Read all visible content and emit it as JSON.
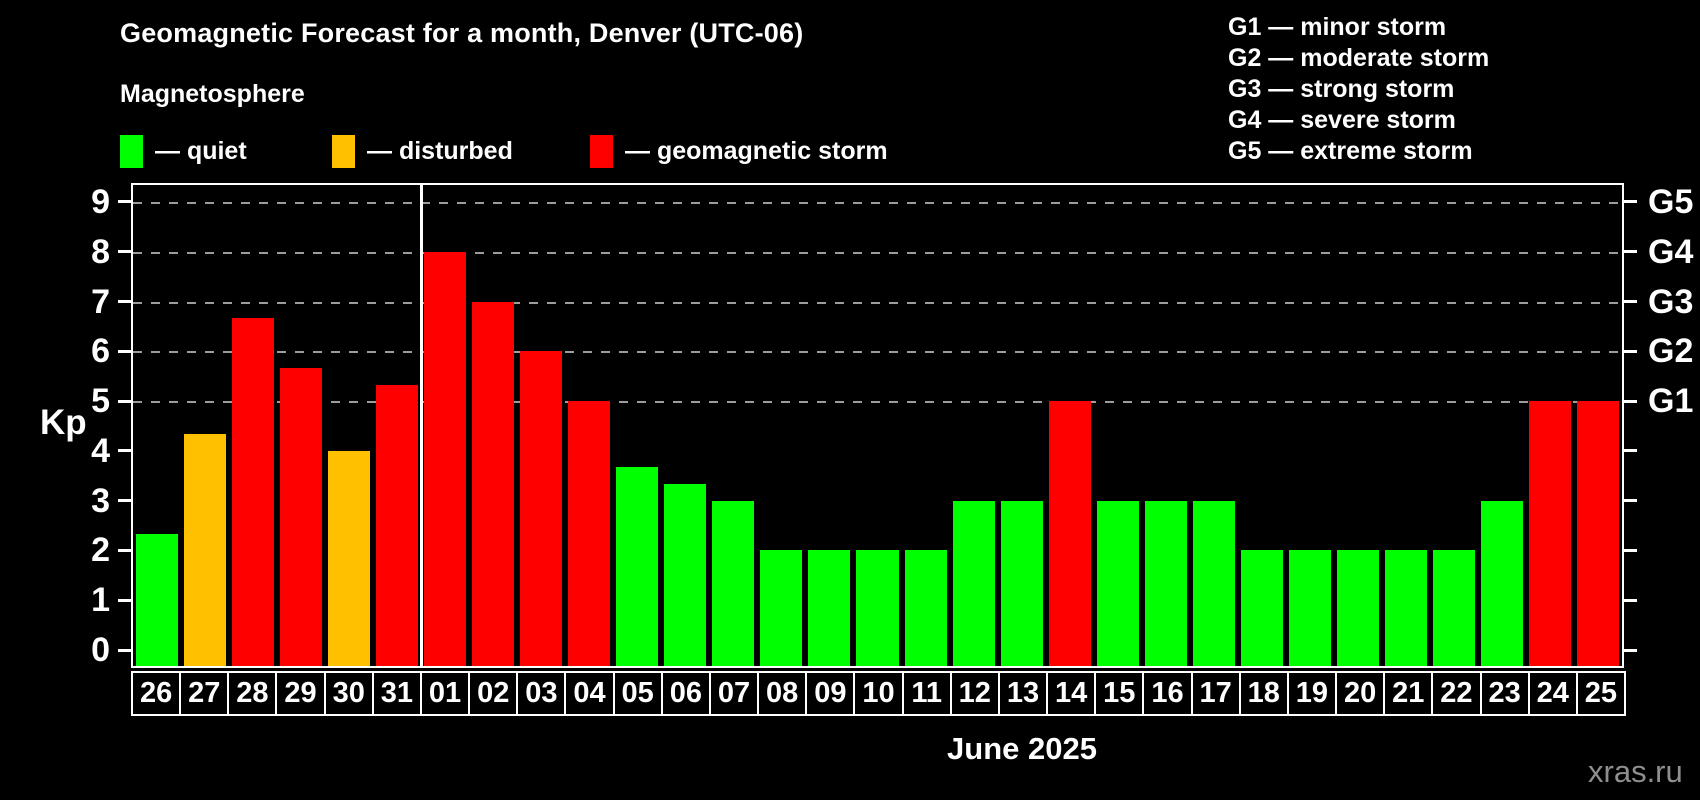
{
  "title": "Geomagnetic Forecast for a month, Denver (UTC-06)",
  "subtitle": "Magnetosphere",
  "legend": {
    "items": [
      {
        "name": "quiet",
        "label": "— quiet",
        "color": "#00ff00"
      },
      {
        "name": "disturbed",
        "label": "— disturbed",
        "color": "#ffc000"
      },
      {
        "name": "storm",
        "label": "— geomagnetic storm",
        "color": "#ff0000"
      }
    ]
  },
  "g_legend": {
    "lines": [
      "G1 — minor storm",
      "G2 — moderate storm",
      "G3 — strong storm",
      "G4 — severe storm",
      "G5 — extreme storm"
    ]
  },
  "y_axis": {
    "label": "Kp",
    "ticks": [
      0,
      1,
      2,
      3,
      4,
      5,
      6,
      7,
      8,
      9
    ]
  },
  "right_axis": {
    "labels": [
      {
        "kp": 5,
        "text": "G1"
      },
      {
        "kp": 6,
        "text": "G2"
      },
      {
        "kp": 7,
        "text": "G3"
      },
      {
        "kp": 8,
        "text": "G4"
      },
      {
        "kp": 9,
        "text": "G5"
      }
    ]
  },
  "month_label": "June 2025",
  "watermark": "xras.ru",
  "colors": {
    "quiet": "#00ff00",
    "disturbed": "#ffc000",
    "storm": "#ff0000",
    "grid": "#9c9c9c",
    "axis": "#ffffff",
    "background": "#000000"
  },
  "chart_data": {
    "type": "bar",
    "title": "Geomagnetic Forecast for a month, Denver (UTC-06)",
    "subtitle": "Magnetosphere",
    "xlabel": "June 2025",
    "ylabel": "Kp",
    "ylim": [
      0,
      9
    ],
    "grid": {
      "horizontal_dashed_at_kp": [
        5,
        6,
        7,
        8,
        9
      ]
    },
    "legend_position": "top-left",
    "categories": [
      "26",
      "27",
      "28",
      "29",
      "30",
      "31",
      "01",
      "02",
      "03",
      "04",
      "05",
      "06",
      "07",
      "08",
      "09",
      "10",
      "11",
      "12",
      "13",
      "14",
      "15",
      "16",
      "17",
      "18",
      "19",
      "20",
      "21",
      "22",
      "23",
      "24",
      "25"
    ],
    "values": [
      2.33,
      4.33,
      6.67,
      5.67,
      4,
      5.33,
      8,
      7,
      6,
      5,
      3.67,
      3.33,
      3,
      2,
      2,
      2,
      2,
      3,
      3,
      5,
      3,
      3,
      3,
      2,
      2,
      2,
      2,
      2,
      3,
      5,
      5
    ],
    "statuses": [
      "quiet",
      "disturbed",
      "storm",
      "storm",
      "disturbed",
      "storm",
      "storm",
      "storm",
      "storm",
      "storm",
      "quiet",
      "quiet",
      "quiet",
      "quiet",
      "quiet",
      "quiet",
      "quiet",
      "quiet",
      "quiet",
      "storm",
      "quiet",
      "quiet",
      "quiet",
      "quiet",
      "quiet",
      "quiet",
      "quiet",
      "quiet",
      "quiet",
      "storm",
      "storm"
    ],
    "status_colors": {
      "quiet": "#00ff00",
      "disturbed": "#ffc000",
      "storm": "#ff0000"
    },
    "separator_after_index": 5,
    "right_axis_labels": {
      "G1": 5,
      "G2": 6,
      "G3": 7,
      "G4": 8,
      "G5": 9
    }
  }
}
